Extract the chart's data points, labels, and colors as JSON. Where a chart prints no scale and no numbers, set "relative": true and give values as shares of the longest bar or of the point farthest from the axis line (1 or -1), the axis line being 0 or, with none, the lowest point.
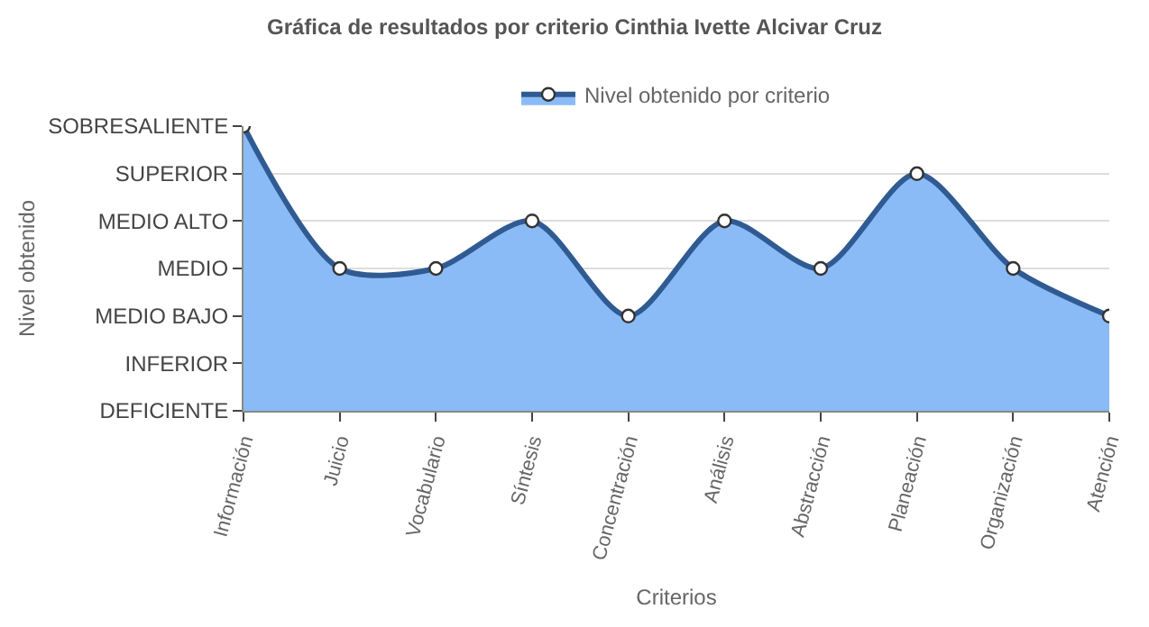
{
  "chart_data": {
    "type": "area",
    "title": "Gráfica de resultados por criterio Cinthia Ivette Alcivar Cruz",
    "xlabel": "Criterios",
    "categories": [
      "Información",
      "Juicio",
      "Vocabulario",
      "Síntesis",
      "Concentración",
      "Análisis",
      "Abstracción",
      "Planeación",
      "Organización",
      "Atención"
    ],
    "series": [
      {
        "name": "Nivel obtenido por criterio",
        "color": "#8abbf6",
        "values": [
          1,
          0.5,
          0.5,
          0.667,
          0.333,
          0.667,
          0.5,
          0.833,
          0.5,
          0.333
        ]
      }
    ],
    "relative": true,
    "annotations": [
      "Nivel obtenido",
      "DEFICIENTE",
      "INFERIOR",
      "MEDIO BAJO",
      "MEDIO",
      "MEDIO ALTO",
      "SUPERIOR",
      "SOBRESALIENTE"
    ],
    "grid": "y",
    "legend": "top",
    "marker": "circle",
    "line_style": "solid"
  }
}
